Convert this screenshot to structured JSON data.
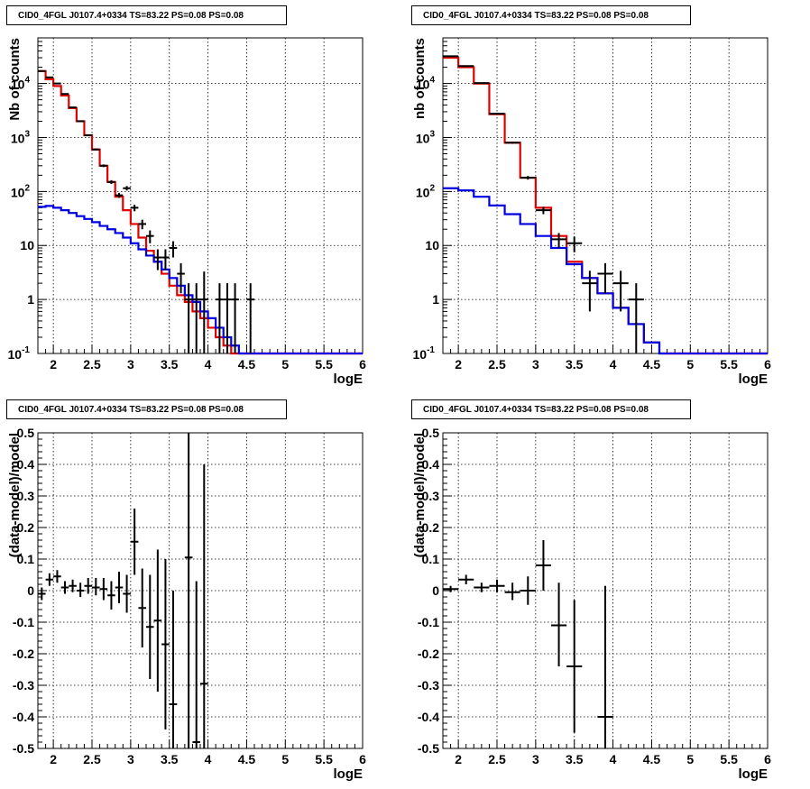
{
  "chart_data": [
    {
      "type": "line",
      "title": "CID0_4FGL J0107.4+0334 TS=83.22 PS=0.08 PS=0.08",
      "xlabel": "logE",
      "ylabel": "Nb of counts",
      "xlim": [
        1.8,
        6
      ],
      "ylim": [
        0.1,
        70000
      ],
      "yscale": "log",
      "grid": true,
      "x_ticks": [
        "2",
        "2.5",
        "3",
        "3.5",
        "4",
        "4.5",
        "5",
        "5.5",
        "6"
      ],
      "y_ticks": [
        "10^-1",
        "1",
        "10",
        "10^2",
        "10^3",
        "10^4"
      ],
      "series": [
        {
          "color": "#e00000",
          "style": "step",
          "bin_edges": [
            1.8,
            1.9,
            2.0,
            2.1,
            2.2,
            2.3,
            2.4,
            2.5,
            2.6,
            2.7,
            2.8,
            2.9,
            3.0,
            3.1,
            3.2,
            3.3,
            3.4,
            3.5,
            3.6,
            3.7,
            3.8,
            3.9,
            4.0,
            4.1,
            4.2,
            4.3,
            4.4,
            4.5,
            4.6,
            4.7,
            4.8,
            4.9,
            5.0,
            5.1,
            5.2,
            5.3,
            5.4,
            5.5,
            5.6,
            5.7,
            5.8,
            5.9,
            6.0
          ],
          "values": [
            17000,
            12000,
            9000,
            6000,
            3500,
            2000,
            1100,
            600,
            300,
            150,
            80,
            45,
            25,
            14,
            8,
            5,
            3,
            1.8,
            1.2,
            0.9,
            0.6,
            0.45,
            0.3,
            0.2,
            0.14,
            0.1,
            0.1,
            0.1,
            0.1,
            0.1,
            0.1,
            0.1,
            0.1,
            0.1,
            0.1,
            0.1,
            0.1,
            0.1,
            0.1,
            0.1,
            0.1,
            0.1
          ]
        },
        {
          "color": "#0000e0",
          "style": "step",
          "bin_edges": [
            1.8,
            1.9,
            2.0,
            2.1,
            2.2,
            2.3,
            2.4,
            2.5,
            2.6,
            2.7,
            2.8,
            2.9,
            3.0,
            3.1,
            3.2,
            3.3,
            3.4,
            3.5,
            3.6,
            3.7,
            3.8,
            3.9,
            4.0,
            4.1,
            4.2,
            4.3,
            4.4,
            4.5,
            4.6,
            4.7,
            4.8,
            4.9,
            5.0,
            5.1,
            5.2,
            5.3,
            5.4,
            5.5,
            5.6,
            5.7,
            5.8,
            5.9,
            6.0
          ],
          "values": [
            52,
            54,
            50,
            45,
            40,
            35,
            31,
            27,
            23,
            20,
            17,
            14,
            11,
            8.5,
            6.5,
            5,
            3.6,
            2.5,
            1.8,
            1.2,
            0.9,
            0.6,
            0.45,
            0.3,
            0.2,
            0.14,
            0.1,
            0.1,
            0.1,
            0.1,
            0.1,
            0.1,
            0.1,
            0.1,
            0.1,
            0.1,
            0.1,
            0.1,
            0.1,
            0.1,
            0.1,
            0.1
          ]
        }
      ],
      "points": [
        {
          "x": 1.85,
          "y": 17000,
          "xerr": 0.05,
          "ylo": 16800,
          "yhi": 17200
        },
        {
          "x": 1.95,
          "y": 13000,
          "xerr": 0.05,
          "ylo": 12800,
          "yhi": 13200
        },
        {
          "x": 2.05,
          "y": 10000,
          "xerr": 0.05,
          "ylo": 9800,
          "yhi": 10200
        },
        {
          "x": 2.15,
          "y": 6400,
          "xerr": 0.05,
          "ylo": 6250,
          "yhi": 6550
        },
        {
          "x": 2.25,
          "y": 3600,
          "xerr": 0.05,
          "ylo": 3500,
          "yhi": 3700
        },
        {
          "x": 2.35,
          "y": 2000,
          "xerr": 0.05,
          "ylo": 1950,
          "yhi": 2050
        },
        {
          "x": 2.45,
          "y": 1100,
          "xerr": 0.05,
          "ylo": 1060,
          "yhi": 1140
        },
        {
          "x": 2.55,
          "y": 600,
          "xerr": 0.05,
          "ylo": 575,
          "yhi": 625
        },
        {
          "x": 2.65,
          "y": 300,
          "xerr": 0.05,
          "ylo": 283,
          "yhi": 317
        },
        {
          "x": 2.75,
          "y": 150,
          "xerr": 0.05,
          "ylo": 138,
          "yhi": 162
        },
        {
          "x": 2.85,
          "y": 85,
          "xerr": 0.05,
          "ylo": 76,
          "yhi": 94
        },
        {
          "x": 2.95,
          "y": 115,
          "xerr": 0.05,
          "ylo": 104,
          "yhi": 126
        },
        {
          "x": 3.05,
          "y": 50,
          "xerr": 0.05,
          "ylo": 43,
          "yhi": 57
        },
        {
          "x": 3.15,
          "y": 25,
          "xerr": 0.05,
          "ylo": 20,
          "yhi": 30
        },
        {
          "x": 3.25,
          "y": 15,
          "xerr": 0.05,
          "ylo": 11,
          "yhi": 19
        },
        {
          "x": 3.35,
          "y": 6,
          "xerr": 0.05,
          "ylo": 3.5,
          "yhi": 8.5
        },
        {
          "x": 3.45,
          "y": 6,
          "xerr": 0.05,
          "ylo": 3.5,
          "yhi": 8.5
        },
        {
          "x": 3.55,
          "y": 9,
          "xerr": 0.05,
          "ylo": 6,
          "yhi": 12
        },
        {
          "x": 3.65,
          "y": 3,
          "xerr": 0.05,
          "ylo": 1.3,
          "yhi": 4.7
        },
        {
          "x": 3.75,
          "y": 1,
          "xerr": 0.05,
          "ylo": 0.1,
          "yhi": 2.0
        },
        {
          "x": 3.85,
          "y": 1,
          "xerr": 0.05,
          "ylo": 0.1,
          "yhi": 2.0
        },
        {
          "x": 3.95,
          "y": 1,
          "xerr": 0.05,
          "ylo": 0.1,
          "yhi": 3.3
        },
        {
          "x": 4.15,
          "y": 1,
          "xerr": 0.05,
          "ylo": 0.1,
          "yhi": 2.0
        },
        {
          "x": 4.25,
          "y": 1,
          "xerr": 0.05,
          "ylo": 0.1,
          "yhi": 2.0
        },
        {
          "x": 4.35,
          "y": 1,
          "xerr": 0.05,
          "ylo": 0.1,
          "yhi": 2.0
        },
        {
          "x": 4.55,
          "y": 1,
          "xerr": 0.05,
          "ylo": 0.1,
          "yhi": 2.0
        }
      ]
    },
    {
      "type": "line",
      "title": "CID0_4FGL J0107.4+0334 TS=83.22 PS=0.08 PS=0.08",
      "xlabel": "logE",
      "ylabel": "nb of counts",
      "xlim": [
        1.8,
        6
      ],
      "ylim": [
        0.1,
        70000
      ],
      "yscale": "log",
      "grid": true,
      "x_ticks": [
        "2",
        "2.5",
        "3",
        "3.5",
        "4",
        "4.5",
        "5",
        "5.5",
        "6"
      ],
      "y_ticks": [
        "10^-1",
        "1",
        "10",
        "10^2",
        "10^3",
        "10^4"
      ],
      "series": [
        {
          "color": "#e00000",
          "style": "step",
          "bin_edges": [
            1.8,
            2.0,
            2.2,
            2.4,
            2.6,
            2.8,
            3.0,
            3.2,
            3.4,
            3.6,
            3.8,
            4.0,
            4.2,
            4.4,
            4.6,
            4.8,
            5.0,
            5.2,
            5.4,
            5.6,
            5.8,
            6.0
          ],
          "values": [
            30000,
            20000,
            10000,
            2700,
            800,
            180,
            50,
            15,
            5,
            2.5,
            1.3,
            0.7,
            0.35,
            0.16,
            0.1,
            0.1,
            0.1,
            0.1,
            0.1,
            0.1,
            0.1
          ]
        },
        {
          "color": "#0000e0",
          "style": "step",
          "bin_edges": [
            1.8,
            2.0,
            2.2,
            2.4,
            2.6,
            2.8,
            3.0,
            3.2,
            3.4,
            3.6,
            3.8,
            4.0,
            4.2,
            4.4,
            4.6,
            4.8,
            5.0,
            5.2,
            5.4,
            5.6,
            5.8,
            6.0
          ],
          "values": [
            115,
            105,
            80,
            55,
            38,
            25,
            15,
            9,
            4.5,
            2.5,
            1.3,
            0.7,
            0.35,
            0.16,
            0.1,
            0.1,
            0.1,
            0.1,
            0.1,
            0.1,
            0.1
          ]
        }
      ],
      "points": [
        {
          "x": 1.9,
          "y": 32000,
          "xerr": 0.1,
          "ylo": 31600,
          "yhi": 32400
        },
        {
          "x": 2.1,
          "y": 21000,
          "xerr": 0.1,
          "ylo": 20700,
          "yhi": 21300
        },
        {
          "x": 2.3,
          "y": 10200,
          "xerr": 0.1,
          "ylo": 10000,
          "yhi": 10400
        },
        {
          "x": 2.5,
          "y": 2750,
          "xerr": 0.1,
          "ylo": 2650,
          "yhi": 2850
        },
        {
          "x": 2.7,
          "y": 800,
          "xerr": 0.1,
          "ylo": 770,
          "yhi": 830
        },
        {
          "x": 2.9,
          "y": 180,
          "xerr": 0.1,
          "ylo": 166,
          "yhi": 194
        },
        {
          "x": 3.1,
          "y": 45,
          "xerr": 0.1,
          "ylo": 38,
          "yhi": 52
        },
        {
          "x": 3.3,
          "y": 13,
          "xerr": 0.1,
          "ylo": 9,
          "yhi": 17
        },
        {
          "x": 3.5,
          "y": 11,
          "xerr": 0.1,
          "ylo": 7.5,
          "yhi": 14.5
        },
        {
          "x": 3.7,
          "y": 2,
          "xerr": 0.1,
          "ylo": 0.6,
          "yhi": 3.4
        },
        {
          "x": 3.9,
          "y": 3,
          "xerr": 0.1,
          "ylo": 1.3,
          "yhi": 4.7
        },
        {
          "x": 4.1,
          "y": 2,
          "xerr": 0.1,
          "ylo": 0.6,
          "yhi": 3.4
        },
        {
          "x": 4.3,
          "y": 1,
          "xerr": 0.1,
          "ylo": 0.1,
          "yhi": 2.0
        }
      ]
    },
    {
      "type": "scatter",
      "title": "CID0_4FGL J0107.4+0334 TS=83.22 PS=0.08 PS=0.08",
      "xlabel": "logE",
      "ylabel": "(data-model)/model",
      "xlim": [
        1.8,
        6
      ],
      "ylim": [
        -0.5,
        0.5
      ],
      "grid": true,
      "x_ticks": [
        "2",
        "2.5",
        "3",
        "3.5",
        "4",
        "4.5",
        "5",
        "5.5",
        "6"
      ],
      "y_ticks": [
        "-0.5",
        "-0.4",
        "-0.3",
        "-0.2",
        "-0.1",
        "0",
        "0.1",
        "0.2",
        "0.3",
        "0.4",
        "0.5"
      ],
      "points": [
        {
          "x": 1.85,
          "y": -0.01,
          "xerr": 0.05,
          "ylo": -0.03,
          "yhi": 0.01
        },
        {
          "x": 1.95,
          "y": 0.035,
          "xerr": 0.05,
          "ylo": 0.015,
          "yhi": 0.055
        },
        {
          "x": 2.05,
          "y": 0.045,
          "xerr": 0.05,
          "ylo": 0.025,
          "yhi": 0.065
        },
        {
          "x": 2.15,
          "y": 0.01,
          "xerr": 0.05,
          "ylo": -0.01,
          "yhi": 0.03
        },
        {
          "x": 2.25,
          "y": 0.015,
          "xerr": 0.05,
          "ylo": -0.005,
          "yhi": 0.035
        },
        {
          "x": 2.35,
          "y": 0.0,
          "xerr": 0.05,
          "ylo": -0.02,
          "yhi": 0.025
        },
        {
          "x": 2.45,
          "y": 0.015,
          "xerr": 0.05,
          "ylo": -0.01,
          "yhi": 0.04
        },
        {
          "x": 2.55,
          "y": 0.01,
          "xerr": 0.05,
          "ylo": -0.015,
          "yhi": 0.04
        },
        {
          "x": 2.65,
          "y": 0.005,
          "xerr": 0.05,
          "ylo": -0.03,
          "yhi": 0.04
        },
        {
          "x": 2.75,
          "y": -0.015,
          "xerr": 0.05,
          "ylo": -0.06,
          "yhi": 0.03
        },
        {
          "x": 2.85,
          "y": 0.01,
          "xerr": 0.05,
          "ylo": -0.04,
          "yhi": 0.06
        },
        {
          "x": 2.95,
          "y": -0.01,
          "xerr": 0.05,
          "ylo": -0.07,
          "yhi": 0.05
        },
        {
          "x": 3.05,
          "y": 0.155,
          "xerr": 0.05,
          "ylo": 0.05,
          "yhi": 0.26
        },
        {
          "x": 3.15,
          "y": -0.055,
          "xerr": 0.05,
          "ylo": -0.18,
          "yhi": 0.07
        },
        {
          "x": 3.25,
          "y": -0.115,
          "xerr": 0.05,
          "ylo": -0.28,
          "yhi": 0.05
        },
        {
          "x": 3.35,
          "y": -0.095,
          "xerr": 0.05,
          "ylo": -0.32,
          "yhi": 0.13
        },
        {
          "x": 3.45,
          "y": -0.17,
          "xerr": 0.05,
          "ylo": -0.44,
          "yhi": 0.1
        },
        {
          "x": 3.55,
          "y": -0.36,
          "xerr": 0.05,
          "ylo": -0.5,
          "yhi": 0.0
        },
        {
          "x": 3.75,
          "y": 0.105,
          "xerr": 0.05,
          "ylo": -0.5,
          "yhi": 0.5
        },
        {
          "x": 3.85,
          "y": -0.48,
          "xerr": 0.05,
          "ylo": -0.5,
          "yhi": 0.03
        },
        {
          "x": 3.95,
          "y": -0.295,
          "xerr": 0.05,
          "ylo": -0.5,
          "yhi": 0.4
        }
      ]
    },
    {
      "type": "scatter",
      "title": "CID0_4FGL J0107.4+0334 TS=83.22 PS=0.08 PS=0.08",
      "xlabel": "logE",
      "ylabel": "(data-model)/model",
      "xlim": [
        1.8,
        6
      ],
      "ylim": [
        -0.5,
        0.5
      ],
      "grid": true,
      "x_ticks": [
        "2",
        "2.5",
        "3",
        "3.5",
        "4",
        "4.5",
        "5",
        "5.5",
        "6"
      ],
      "y_ticks": [
        "-0.5",
        "-0.4",
        "-0.3",
        "-0.2",
        "-0.1",
        "0",
        "0.1",
        "0.2",
        "0.3",
        "0.4",
        "0.5"
      ],
      "points": [
        {
          "x": 1.9,
          "y": 0.005,
          "xerr": 0.1,
          "ylo": -0.005,
          "yhi": 0.015
        },
        {
          "x": 2.1,
          "y": 0.035,
          "xerr": 0.1,
          "ylo": 0.02,
          "yhi": 0.05
        },
        {
          "x": 2.3,
          "y": 0.01,
          "xerr": 0.1,
          "ylo": -0.005,
          "yhi": 0.025
        },
        {
          "x": 2.5,
          "y": 0.015,
          "xerr": 0.1,
          "ylo": -0.005,
          "yhi": 0.035
        },
        {
          "x": 2.7,
          "y": -0.005,
          "xerr": 0.1,
          "ylo": -0.03,
          "yhi": 0.025
        },
        {
          "x": 2.9,
          "y": 0.0,
          "xerr": 0.1,
          "ylo": -0.045,
          "yhi": 0.045
        },
        {
          "x": 3.1,
          "y": 0.08,
          "xerr": 0.1,
          "ylo": 0.0,
          "yhi": 0.16
        },
        {
          "x": 3.3,
          "y": -0.11,
          "xerr": 0.1,
          "ylo": -0.24,
          "yhi": 0.025
        },
        {
          "x": 3.5,
          "y": -0.24,
          "xerr": 0.1,
          "ylo": -0.45,
          "yhi": -0.03
        },
        {
          "x": 3.9,
          "y": -0.4,
          "xerr": 0.1,
          "ylo": -0.5,
          "yhi": 0.015
        }
      ]
    }
  ]
}
